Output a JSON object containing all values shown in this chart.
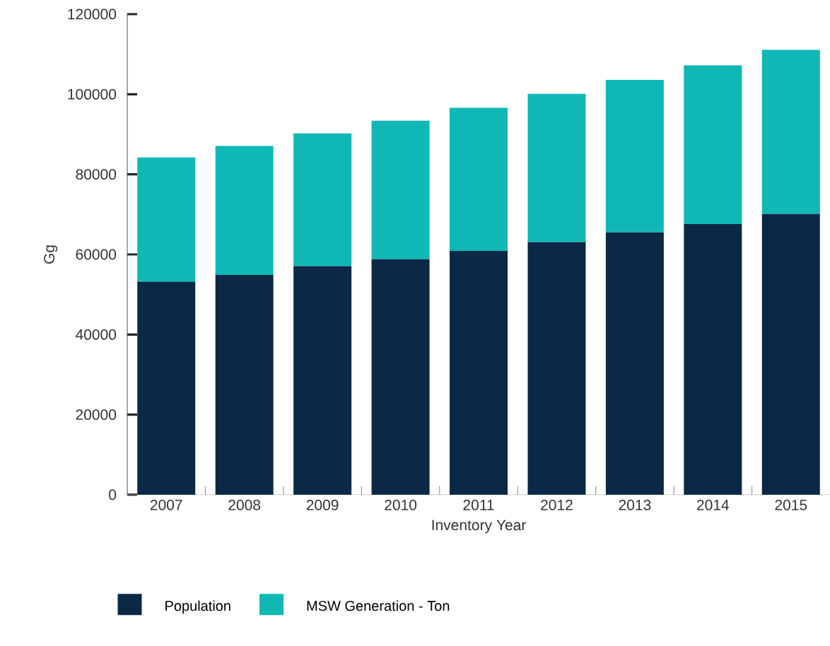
{
  "chart_data": {
    "type": "bar",
    "stacked": true,
    "xlabel": "Inventory Year",
    "ylabel": "Gg",
    "categories": [
      "2007",
      "2008",
      "2009",
      "2010",
      "2011",
      "2012",
      "2013",
      "2014",
      "2015"
    ],
    "series": [
      {
        "name": "Population",
        "color": "#0b2847",
        "values": [
          53200,
          54900,
          57100,
          58800,
          60900,
          63100,
          65500,
          67600,
          70100
        ]
      },
      {
        "name": "MSW Generation - Ton",
        "color": "#0fb8b6",
        "values": [
          31000,
          32200,
          33100,
          34600,
          35700,
          37000,
          38100,
          39600,
          41000
        ]
      }
    ],
    "ylim": [
      0,
      120000
    ],
    "yticks": [
      0,
      20000,
      40000,
      60000,
      80000,
      100000,
      120000
    ],
    "grid": false,
    "legend": "bottom"
  }
}
